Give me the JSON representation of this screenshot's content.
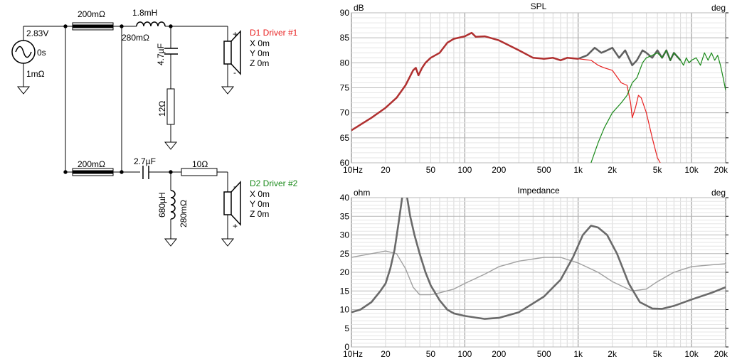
{
  "schematic": {
    "source": {
      "voltage": "2.83V",
      "delay": "0s",
      "resistance": "1mΩ"
    },
    "top_series_resistor": "200mΩ",
    "bottom_series_resistor": "200mΩ",
    "inductor1": {
      "value": "1.8mH",
      "resistance": "280mΩ"
    },
    "cap1": "4.7µF",
    "res1": "12Ω",
    "cap2": "2.7µF",
    "res2": "10Ω",
    "inductor2": {
      "value": "680µH",
      "resistance": "280mΩ"
    },
    "driver1": {
      "name": "D1 Driver #1",
      "x": "X 0m",
      "y": "Y 0m",
      "z": "Z 0m",
      "plus": "+",
      "minus": "-"
    },
    "driver2": {
      "name": "D2 Driver #2",
      "x": "X 0m",
      "y": "Y 0m",
      "z": "Z 0m",
      "plus": "-",
      "minus": "+"
    },
    "colors": {
      "driver1": "#e82020",
      "driver2": "#1a8a1a"
    }
  },
  "chart_data": [
    {
      "type": "line",
      "title": "SPL",
      "ylabel": "dB",
      "y2label": "deg",
      "xscale": "log",
      "xlim": [
        10,
        20000
      ],
      "ylim": [
        60,
        90
      ],
      "xticks": [
        {
          "v": 10,
          "t": "10Hz"
        },
        {
          "v": 20,
          "t": "20"
        },
        {
          "v": 50,
          "t": "50"
        },
        {
          "v": 100,
          "t": "100"
        },
        {
          "v": 200,
          "t": "200"
        },
        {
          "v": 500,
          "t": "500"
        },
        {
          "v": 1000,
          "t": "1k"
        },
        {
          "v": 2000,
          "t": "2k"
        },
        {
          "v": 5000,
          "t": "5k"
        },
        {
          "v": 10000,
          "t": "10k"
        },
        {
          "v": 20000,
          "t": "20k"
        }
      ],
      "yticks": [
        60,
        65,
        70,
        75,
        80,
        85,
        90
      ],
      "grid": true,
      "series": [
        {
          "color": "#606060",
          "width": 2.5,
          "points": [
            [
              1000,
              80.8
            ],
            [
              1200,
              81.5
            ],
            [
              1400,
              83
            ],
            [
              1600,
              82
            ],
            [
              1800,
              82.5
            ],
            [
              2000,
              83
            ],
            [
              2300,
              81
            ],
            [
              2600,
              82.5
            ],
            [
              3000,
              79.5
            ],
            [
              3300,
              80.5
            ],
            [
              3700,
              82.5
            ],
            [
              4000,
              82
            ],
            [
              4500,
              81
            ],
            [
              5000,
              82.5
            ],
            [
              5500,
              81
            ],
            [
              6000,
              82.5
            ],
            [
              6500,
              80.5
            ],
            [
              7000,
              82
            ],
            [
              8000,
              80.5
            ]
          ]
        },
        {
          "color": "#e82020",
          "width": 1.2,
          "points": [
            [
              1000,
              80.8
            ],
            [
              1300,
              80.5
            ],
            [
              1500,
              79.5
            ],
            [
              1700,
              79
            ],
            [
              2000,
              78.5
            ],
            [
              2400,
              76
            ],
            [
              2700,
              75.5
            ],
            [
              2900,
              72
            ],
            [
              3000,
              69
            ],
            [
              3200,
              71
            ],
            [
              3400,
              73.5
            ],
            [
              3600,
              73
            ],
            [
              4000,
              70
            ],
            [
              4500,
              65
            ],
            [
              5000,
              61
            ],
            [
              5300,
              60
            ]
          ]
        },
        {
          "color": "#1a8a1a",
          "width": 1.2,
          "points": [
            [
              1300,
              60
            ],
            [
              1500,
              64
            ],
            [
              1700,
              67
            ],
            [
              2000,
              70
            ],
            [
              2400,
              72
            ],
            [
              2700,
              73.5
            ],
            [
              3000,
              76
            ],
            [
              3300,
              77
            ],
            [
              3700,
              80
            ],
            [
              4000,
              81
            ],
            [
              4500,
              81.5
            ],
            [
              5000,
              82
            ],
            [
              5500,
              81
            ],
            [
              6000,
              82.5
            ],
            [
              6500,
              80.5
            ],
            [
              7000,
              82
            ],
            [
              8000,
              80.5
            ],
            [
              8500,
              79.5
            ],
            [
              9000,
              81
            ],
            [
              9500,
              80
            ],
            [
              10000,
              80.5
            ],
            [
              11000,
              81
            ],
            [
              12000,
              79.5
            ],
            [
              13000,
              82
            ],
            [
              14000,
              80.5
            ],
            [
              15000,
              82
            ],
            [
              16000,
              80.5
            ],
            [
              17000,
              81.5
            ],
            [
              18000,
              79.5
            ],
            [
              19000,
              77
            ],
            [
              20000,
              74.5
            ]
          ]
        },
        {
          "color": "#b03030",
          "width": 2.5,
          "points": [
            [
              10,
              66.5
            ],
            [
              15,
              69
            ],
            [
              20,
              71
            ],
            [
              25,
              73
            ],
            [
              30,
              75.5
            ],
            [
              35,
              78.5
            ],
            [
              37,
              79
            ],
            [
              39,
              77.5
            ],
            [
              42,
              79
            ],
            [
              45,
              80
            ],
            [
              50,
              81
            ],
            [
              60,
              82
            ],
            [
              70,
              84
            ],
            [
              80,
              84.8
            ],
            [
              100,
              85.3
            ],
            [
              115,
              86
            ],
            [
              125,
              85.2
            ],
            [
              150,
              85.3
            ],
            [
              200,
              84.5
            ],
            [
              300,
              82.5
            ],
            [
              400,
              81
            ],
            [
              500,
              80.8
            ],
            [
              600,
              81
            ],
            [
              700,
              80.5
            ],
            [
              800,
              81
            ],
            [
              1000,
              80.8
            ]
          ]
        }
      ]
    },
    {
      "type": "line",
      "title": "Impedance",
      "ylabel": "ohm",
      "y2label": "deg",
      "xscale": "log",
      "xlim": [
        10,
        20000
      ],
      "ylim": [
        0,
        40
      ],
      "xticks": [
        {
          "v": 10,
          "t": "10Hz"
        },
        {
          "v": 20,
          "t": "20"
        },
        {
          "v": 50,
          "t": "50"
        },
        {
          "v": 100,
          "t": "100"
        },
        {
          "v": 200,
          "t": "200"
        },
        {
          "v": 500,
          "t": "500"
        },
        {
          "v": 1000,
          "t": "1k"
        },
        {
          "v": 2000,
          "t": "2k"
        },
        {
          "v": 5000,
          "t": "5k"
        },
        {
          "v": 10000,
          "t": "10k"
        },
        {
          "v": 20000,
          "t": "20k"
        }
      ],
      "yticks": [
        0,
        5,
        10,
        15,
        20,
        25,
        30,
        35,
        40
      ],
      "grid": true,
      "series": [
        {
          "color": "#a0a0a0",
          "width": 1.4,
          "points": [
            [
              10,
              24
            ],
            [
              15,
              25
            ],
            [
              20,
              25.7
            ],
            [
              25,
              25
            ],
            [
              30,
              21
            ],
            [
              35,
              16
            ],
            [
              40,
              14
            ],
            [
              50,
              14
            ],
            [
              60,
              14.5
            ],
            [
              80,
              15.5
            ],
            [
              100,
              17
            ],
            [
              150,
              19.5
            ],
            [
              200,
              21.5
            ],
            [
              300,
              23
            ],
            [
              500,
              24
            ],
            [
              700,
              24
            ],
            [
              1000,
              22.5
            ],
            [
              1500,
              20
            ],
            [
              2000,
              17.5
            ],
            [
              3000,
              15
            ],
            [
              4000,
              15.5
            ],
            [
              5000,
              17.5
            ],
            [
              7000,
              20
            ],
            [
              10000,
              21.5
            ],
            [
              15000,
              22
            ],
            [
              20000,
              22.3
            ]
          ]
        },
        {
          "color": "#6a6a6a",
          "width": 2.6,
          "points": [
            [
              10,
              9.3
            ],
            [
              12,
              10
            ],
            [
              15,
              12
            ],
            [
              18,
              15
            ],
            [
              20,
              17
            ],
            [
              22,
              21
            ],
            [
              24,
              26
            ],
            [
              26,
              33
            ],
            [
              28,
              40
            ]
          ]
        },
        {
          "color": "#6a6a6a",
          "width": 2.6,
          "points": [
            [
              31,
              40
            ],
            [
              33,
              35
            ],
            [
              36,
              30
            ],
            [
              40,
              25
            ],
            [
              45,
              20
            ],
            [
              50,
              16.5
            ],
            [
              60,
              12.5
            ],
            [
              70,
              10
            ],
            [
              80,
              9
            ],
            [
              100,
              8.3
            ],
            [
              150,
              7.5
            ],
            [
              200,
              7.8
            ],
            [
              300,
              9.3
            ],
            [
              500,
              13.5
            ],
            [
              700,
              18
            ],
            [
              900,
              24
            ],
            [
              1100,
              30
            ],
            [
              1300,
              32.5
            ],
            [
              1500,
              32
            ],
            [
              1800,
              30
            ],
            [
              2200,
              25
            ],
            [
              2800,
              17
            ],
            [
              3500,
              12
            ],
            [
              4500,
              10.3
            ],
            [
              5500,
              10.2
            ],
            [
              7000,
              11
            ],
            [
              10000,
              12.7
            ],
            [
              15000,
              14.5
            ],
            [
              20000,
              16
            ]
          ]
        }
      ]
    }
  ]
}
